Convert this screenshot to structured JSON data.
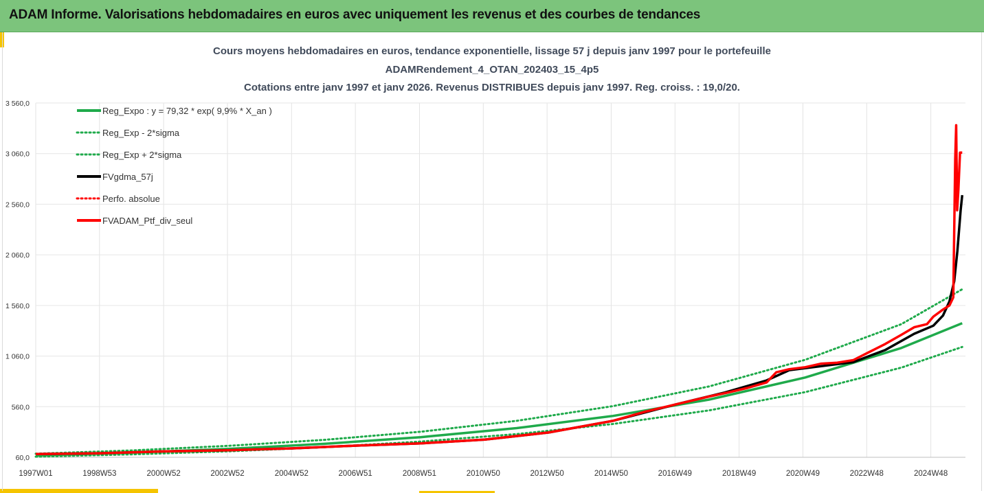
{
  "header": {
    "title": "ADAM Informe. Valorisations hebdomadaires en euros avec uniquement les revenus et des courbes de tendances"
  },
  "chart_data": {
    "type": "line",
    "title_lines": [
      "Cours moyens hebdomadaires  en euros, tendance exponentielle, lissage 57 j depuis janv 1997 pour le portefeuille",
      "ADAMRendement_4_OTAN_202403_15_4p5",
      "Cotations entre janv 1997 et janv 2026. Revenus DISTRIBUES depuis janv 1997. Reg. croiss. : 19,0/20."
    ],
    "ylim": [
      60,
      3560
    ],
    "y_ticks": [
      60,
      560,
      1060,
      1560,
      2060,
      2560,
      3060,
      3560
    ],
    "y_tick_labels": [
      "60,0",
      "560,0",
      "1 060,0",
      "1 560,0",
      "2 060,0",
      "2 560,0",
      "3 060,0",
      "3 560,0"
    ],
    "xlim": [
      1997.0,
      2026.0
    ],
    "x_ticks": [
      1997.0,
      1998.99,
      2000.99,
      2002.98,
      2004.98,
      2006.97,
      2008.97,
      2010.96,
      2012.95,
      2014.95,
      2016.94,
      2018.94,
      2020.93,
      2022.92,
      2024.92
    ],
    "x_tick_labels": [
      "1997W01",
      "1998W53",
      "2000W52",
      "2002W52",
      "2004W52",
      "2006W51",
      "2008W51",
      "2010W50",
      "2012W50",
      "2014W50",
      "2016W49",
      "2018W49",
      "2020W49",
      "2022W48",
      "2024W48"
    ],
    "legend": {
      "placement": "top-left"
    },
    "series": [
      {
        "name": "Reg_Expo : y = 79,32 * exp( 9,9% *  X_an )",
        "color": "#1faa4b",
        "style": "solid",
        "x": [
          1997.0,
          2000.0,
          2003.0,
          2006.0,
          2009.0,
          2012.0,
          2015.0,
          2018.0,
          2021.0,
          2024.0,
          2025.9
        ],
        "values": [
          79,
          107,
          143,
          193,
          259,
          348,
          468,
          630,
          848,
          1140,
          1385
        ]
      },
      {
        "name": "Reg_Exp - 2*sigma",
        "color": "#1faa4b",
        "style": "dotted",
        "x": [
          1997.0,
          2000.0,
          2003.0,
          2006.0,
          2009.0,
          2012.0,
          2015.0,
          2018.0,
          2021.0,
          2024.0,
          2025.9
        ],
        "values": [
          66,
          89,
          119,
          160,
          215,
          289,
          389,
          523,
          704,
          946,
          1150
        ]
      },
      {
        "name": "Reg_Exp + 2*sigma",
        "color": "#1faa4b",
        "style": "dotted",
        "x": [
          1997.0,
          2000.0,
          2003.0,
          2006.0,
          2009.0,
          2012.0,
          2015.0,
          2018.0,
          2021.0,
          2024.0,
          2025.9
        ],
        "values": [
          95,
          128,
          173,
          232,
          312,
          420,
          565,
          760,
          1023,
          1375,
          1720
        ]
      },
      {
        "name": "FVgdma_57j",
        "color": "#000000",
        "style": "solid",
        "x": [
          1997.0,
          1999.0,
          2001.0,
          2003.0,
          2005.0,
          2007.0,
          2009.0,
          2011.0,
          2013.0,
          2015.0,
          2017.0,
          2018.5,
          2019.8,
          2020.5,
          2021.5,
          2022.5,
          2023.5,
          2024.4,
          2025.0,
          2025.3,
          2025.5,
          2025.65,
          2025.75,
          2025.85,
          2025.9
        ],
        "values": [
          92,
          100,
          118,
          130,
          148,
          175,
          198,
          235,
          305,
          420,
          585,
          700,
          820,
          920,
          960,
          1000,
          1120,
          1280,
          1360,
          1460,
          1600,
          1800,
          2100,
          2500,
          2650
        ]
      },
      {
        "name": "Perfo. absolue",
        "color": "#ff0000",
        "style": "dotted",
        "x": [],
        "values": []
      },
      {
        "name": "FVADAM_Ptf_div_seul",
        "color": "#ff0000",
        "style": "solid",
        "x": [
          1997.0,
          1999.0,
          2001.0,
          2003.0,
          2005.0,
          2007.0,
          2009.0,
          2011.0,
          2013.0,
          2015.0,
          2016.0,
          2017.0,
          2018.0,
          2018.6,
          2019.2,
          2019.8,
          2020.1,
          2020.5,
          2021.0,
          2021.5,
          2022.0,
          2022.5,
          2023.0,
          2023.5,
          2024.0,
          2024.4,
          2024.8,
          2025.0,
          2025.3,
          2025.5,
          2025.62,
          2025.68,
          2025.71,
          2025.74,
          2025.78,
          2025.83,
          2025.9
        ],
        "values": [
          92,
          100,
          118,
          130,
          148,
          175,
          198,
          235,
          305,
          420,
          510,
          585,
          660,
          700,
          745,
          800,
          900,
          930,
          950,
          985,
          995,
          1020,
          1100,
          1180,
          1270,
          1345,
          1375,
          1450,
          1520,
          1560,
          1640,
          3000,
          3340,
          2500,
          2700,
          3070,
          3070
        ]
      }
    ]
  }
}
